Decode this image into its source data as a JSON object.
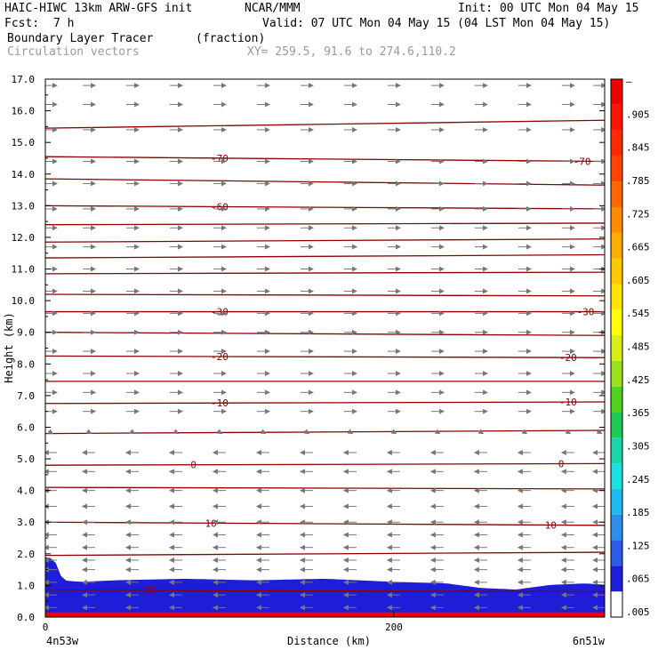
{
  "header": {
    "line1_left": "HAIC-HIWC 13km ARW-GFS init",
    "line1_mid": "NCAR/MMM",
    "line1_right": "Init: 00 UTC Mon 04 May 15",
    "fcst_label": "Fcst:",
    "fcst_value": "7 h",
    "valid": "Valid: 07 UTC Mon 04 May 15 (04 LST Mon 04 May 15)",
    "field_name": "Boundary Layer Tracer",
    "field_unit": "(fraction)",
    "overlay_name": "Circulation vectors",
    "xy_text": "XY= 259.5, 91.6 to 274.6,110.2"
  },
  "chart_data": {
    "type": "heatmap",
    "title": "Boundary Layer Tracer (fraction)",
    "xlabel": "Distance (km)",
    "ylabel": "Height (km)",
    "xlim": [
      0,
      321
    ],
    "ylim": [
      0,
      17
    ],
    "x_ticks": [
      {
        "value": 0,
        "label": "0"
      },
      {
        "value": 200,
        "label": "200"
      }
    ],
    "x_end_labels": {
      "left": "4n53w",
      "right": "6n51w"
    },
    "y_ticks": [
      "0.0",
      "1.0",
      "2.0",
      "3.0",
      "4.0",
      "5.0",
      "6.0",
      "7.0",
      "8.0",
      "9.0",
      "10.0",
      "11.0",
      "12.0",
      "13.0",
      "14.0",
      "15.0",
      "16.0",
      "17.0"
    ],
    "colorbar": {
      "labels": [
        ".005",
        ".065",
        ".125",
        ".185",
        ".245",
        ".305",
        ".365",
        ".425",
        ".485",
        ".545",
        ".605",
        ".665",
        ".725",
        ".785",
        ".845",
        ".905",
        "–"
      ],
      "colors": [
        "#ffffff",
        "#1e1ed8",
        "#2e5ce8",
        "#2c8ff0",
        "#22b8f0",
        "#1ee0e0",
        "#1cd4a6",
        "#1ecb5a",
        "#52d21e",
        "#9ae01e",
        "#d6ee1a",
        "#ffff00",
        "#ffe400",
        "#ffc800",
        "#ffab00",
        "#ff8c00",
        "#ff6800",
        "#ff4400",
        "#ff2a00",
        "#ff1400",
        "#ee0000"
      ]
    },
    "tracer_profile": {
      "x": [
        0,
        5,
        10,
        20,
        40,
        80,
        120,
        160,
        200,
        230,
        250,
        270,
        290,
        310,
        321
      ],
      "top_km": [
        1.95,
        1.9,
        1.2,
        1.15,
        1.2,
        1.25,
        1.2,
        1.25,
        1.15,
        1.1,
        0.95,
        0.9,
        1.05,
        1.1,
        1.05
      ]
    },
    "contours": {
      "color": "#8b0000",
      "series": [
        {
          "label": "20",
          "label_x": [
            60
          ],
          "y": [
            0.85,
            0.8
          ]
        },
        {
          "label": "",
          "y": [
            1.95,
            2.05
          ]
        },
        {
          "label": "10",
          "label_x": [
            95,
            290
          ],
          "y": [
            3.0,
            2.9
          ]
        },
        {
          "label": "",
          "y": [
            4.1,
            4.05
          ]
        },
        {
          "label": "0",
          "label_x": [
            85,
            296
          ],
          "y": [
            4.8,
            4.85
          ]
        },
        {
          "label": "",
          "y": [
            5.8,
            5.9
          ]
        },
        {
          "label": "-10",
          "label_x": [
            100,
            300
          ],
          "y": [
            6.75,
            6.8
          ]
        },
        {
          "label": "",
          "y": [
            7.45,
            7.45
          ]
        },
        {
          "label": "-20",
          "label_x": [
            100,
            300
          ],
          "y": [
            8.25,
            8.2
          ]
        },
        {
          "label": "",
          "y": [
            9.0,
            8.9
          ]
        },
        {
          "label": "-30",
          "label_x": [
            100,
            310
          ],
          "y": [
            9.65,
            9.65
          ]
        },
        {
          "label": "",
          "y": [
            10.2,
            10.15
          ]
        },
        {
          "label": "",
          "y": [
            10.85,
            10.9
          ]
        },
        {
          "label": "",
          "y": [
            11.35,
            11.45
          ]
        },
        {
          "label": "",
          "y": [
            11.85,
            11.95
          ]
        },
        {
          "label": "",
          "y": [
            12.4,
            12.45
          ]
        },
        {
          "label": "-60",
          "label_x": [
            100
          ],
          "y": [
            13.0,
            12.9
          ]
        },
        {
          "label": "",
          "y": [
            13.85,
            13.65
          ]
        },
        {
          "label": "-70",
          "label_x": [
            100,
            308
          ],
          "y": [
            14.55,
            14.4
          ]
        },
        {
          "label": "",
          "y": [
            15.45,
            15.7
          ]
        }
      ]
    },
    "vectors": {
      "color": "#777777",
      "description_note": "",
      "rows": [
        {
          "z": 16.8,
          "dir": 1
        },
        {
          "z": 16.2,
          "dir": 1
        },
        {
          "z": 15.4,
          "dir": 1
        },
        {
          "z": 14.4,
          "dir": 1
        },
        {
          "z": 13.7,
          "dir": 1
        },
        {
          "z": 12.9,
          "dir": 1
        },
        {
          "z": 12.3,
          "dir": 1
        },
        {
          "z": 11.7,
          "dir": 1
        },
        {
          "z": 11.0,
          "dir": 1
        },
        {
          "z": 10.3,
          "dir": 1
        },
        {
          "z": 9.6,
          "dir": 1
        },
        {
          "z": 9.0,
          "dir": 1
        },
        {
          "z": 8.4,
          "dir": 1
        },
        {
          "z": 7.7,
          "dir": 1
        },
        {
          "z": 7.1,
          "dir": 1
        },
        {
          "z": 6.5,
          "dir": 1
        },
        {
          "z": 5.8,
          "dir": 0
        },
        {
          "z": 5.2,
          "dir": -1
        },
        {
          "z": 4.6,
          "dir": -1
        },
        {
          "z": 4.0,
          "dir": -1
        },
        {
          "z": 3.5,
          "dir": -1
        },
        {
          "z": 3.0,
          "dir": -1
        },
        {
          "z": 2.6,
          "dir": -1
        },
        {
          "z": 2.2,
          "dir": -1
        },
        {
          "z": 1.8,
          "dir": -1
        },
        {
          "z": 1.5,
          "dir": -1
        },
        {
          "z": 1.1,
          "dir": -1
        },
        {
          "z": 0.7,
          "dir": -1
        },
        {
          "z": 0.3,
          "dir": -1
        }
      ],
      "columns_x": [
        3,
        25,
        50,
        75,
        100,
        125,
        150,
        175,
        200,
        225,
        250,
        275,
        300,
        318
      ]
    }
  }
}
